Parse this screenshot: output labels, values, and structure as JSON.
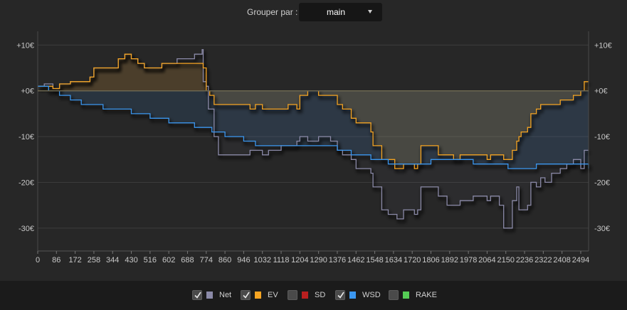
{
  "toolbar": {
    "group_label": "Grouper par :",
    "group_value": "main"
  },
  "legend": [
    {
      "label": "Net",
      "color": "#8b8aa8",
      "checked": true
    },
    {
      "label": "EV",
      "color": "#f5a422",
      "checked": true
    },
    {
      "label": "SD",
      "color": "#b81f1f",
      "checked": false
    },
    {
      "label": "WSD",
      "color": "#3b97f0",
      "checked": true
    },
    {
      "label": "RAKE",
      "color": "#55cc55",
      "checked": false
    }
  ],
  "chart_data": {
    "type": "line",
    "title": "",
    "xlabel": "",
    "ylabel": "",
    "xlim": [
      0,
      2530
    ],
    "ylim": [
      -35,
      13
    ],
    "x_ticks": [
      0,
      86,
      172,
      258,
      344,
      430,
      516,
      602,
      688,
      774,
      860,
      946,
      1032,
      1118,
      1204,
      1290,
      1376,
      1462,
      1548,
      1634,
      1720,
      1806,
      1892,
      1978,
      2064,
      2150,
      2236,
      2322,
      2408,
      2494
    ],
    "y_ticks": [
      10,
      0,
      -10,
      -20,
      -30
    ],
    "y_tick_labels": [
      "+10€",
      "+0€",
      "-10€",
      "-20€",
      "-30€"
    ],
    "grid": true,
    "series": [
      {
        "name": "Net",
        "color": "#8b8aa8",
        "points": [
          [
            0,
            1
          ],
          [
            30,
            1.5
          ],
          [
            70,
            0.5
          ],
          [
            100,
            1.5
          ],
          [
            150,
            2
          ],
          [
            210,
            2
          ],
          [
            240,
            3
          ],
          [
            258,
            5
          ],
          [
            300,
            5
          ],
          [
            344,
            5
          ],
          [
            370,
            7
          ],
          [
            400,
            8
          ],
          [
            430,
            7
          ],
          [
            460,
            6
          ],
          [
            490,
            5
          ],
          [
            530,
            5
          ],
          [
            570,
            6
          ],
          [
            602,
            6
          ],
          [
            640,
            7
          ],
          [
            688,
            7
          ],
          [
            720,
            8
          ],
          [
            745,
            8
          ],
          [
            755,
            9
          ],
          [
            760,
            2
          ],
          [
            774,
            1
          ],
          [
            784,
            -4
          ],
          [
            790,
            -4
          ],
          [
            810,
            -10
          ],
          [
            830,
            -14
          ],
          [
            860,
            -14
          ],
          [
            900,
            -14
          ],
          [
            946,
            -14
          ],
          [
            975,
            -13
          ],
          [
            1000,
            -13
          ],
          [
            1032,
            -14
          ],
          [
            1060,
            -13
          ],
          [
            1100,
            -13
          ],
          [
            1118,
            -12
          ],
          [
            1150,
            -12
          ],
          [
            1190,
            -11
          ],
          [
            1204,
            -10
          ],
          [
            1240,
            -11
          ],
          [
            1290,
            -10
          ],
          [
            1330,
            -10
          ],
          [
            1345,
            -11
          ],
          [
            1376,
            -13
          ],
          [
            1400,
            -14
          ],
          [
            1440,
            -15
          ],
          [
            1462,
            -17
          ],
          [
            1490,
            -17
          ],
          [
            1530,
            -18
          ],
          [
            1540,
            -21
          ],
          [
            1560,
            -21
          ],
          [
            1580,
            -26
          ],
          [
            1610,
            -27
          ],
          [
            1640,
            -27
          ],
          [
            1650,
            -28
          ],
          [
            1665,
            -28
          ],
          [
            1680,
            -26
          ],
          [
            1710,
            -26
          ],
          [
            1730,
            -27
          ],
          [
            1745,
            -26
          ],
          [
            1760,
            -21
          ],
          [
            1790,
            -21
          ],
          [
            1806,
            -21
          ],
          [
            1840,
            -23
          ],
          [
            1880,
            -25
          ],
          [
            1910,
            -25
          ],
          [
            1940,
            -24
          ],
          [
            1970,
            -24
          ],
          [
            2000,
            -23
          ],
          [
            2040,
            -23
          ],
          [
            2064,
            -24
          ],
          [
            2080,
            -23
          ],
          [
            2100,
            -23
          ],
          [
            2120,
            -25
          ],
          [
            2140,
            -30
          ],
          [
            2160,
            -30
          ],
          [
            2180,
            -24
          ],
          [
            2200,
            -21
          ],
          [
            2210,
            -26
          ],
          [
            2220,
            -26
          ],
          [
            2236,
            -26
          ],
          [
            2250,
            -25
          ],
          [
            2265,
            -20
          ],
          [
            2290,
            -21
          ],
          [
            2310,
            -19
          ],
          [
            2330,
            -20
          ],
          [
            2360,
            -18
          ],
          [
            2400,
            -17
          ],
          [
            2430,
            -16
          ],
          [
            2460,
            -15
          ],
          [
            2494,
            -17
          ],
          [
            2510,
            -13
          ],
          [
            2530,
            -13
          ]
        ]
      },
      {
        "name": "EV",
        "color": "#f5a422",
        "points": [
          [
            0,
            1
          ],
          [
            30,
            1
          ],
          [
            70,
            0.5
          ],
          [
            100,
            1.5
          ],
          [
            150,
            2
          ],
          [
            210,
            2
          ],
          [
            240,
            3
          ],
          [
            258,
            5
          ],
          [
            300,
            5
          ],
          [
            344,
            5
          ],
          [
            370,
            7
          ],
          [
            400,
            8
          ],
          [
            430,
            7
          ],
          [
            460,
            6
          ],
          [
            490,
            5
          ],
          [
            530,
            5
          ],
          [
            570,
            6
          ],
          [
            602,
            6
          ],
          [
            640,
            6
          ],
          [
            688,
            6
          ],
          [
            720,
            6
          ],
          [
            745,
            6
          ],
          [
            760,
            5
          ],
          [
            774,
            0
          ],
          [
            790,
            -1
          ],
          [
            810,
            -3
          ],
          [
            830,
            -3
          ],
          [
            860,
            -3
          ],
          [
            900,
            -3
          ],
          [
            946,
            -3
          ],
          [
            975,
            -4
          ],
          [
            1000,
            -3
          ],
          [
            1032,
            -4
          ],
          [
            1060,
            -4
          ],
          [
            1100,
            -4
          ],
          [
            1118,
            -4
          ],
          [
            1150,
            -3
          ],
          [
            1190,
            -4
          ],
          [
            1204,
            -1
          ],
          [
            1220,
            -1
          ],
          [
            1240,
            0
          ],
          [
            1290,
            -1
          ],
          [
            1330,
            -1
          ],
          [
            1345,
            -1
          ],
          [
            1376,
            -3
          ],
          [
            1400,
            -4
          ],
          [
            1440,
            -6
          ],
          [
            1462,
            -7
          ],
          [
            1490,
            -7
          ],
          [
            1530,
            -9
          ],
          [
            1540,
            -12
          ],
          [
            1560,
            -12
          ],
          [
            1580,
            -15
          ],
          [
            1610,
            -15
          ],
          [
            1640,
            -17
          ],
          [
            1650,
            -17
          ],
          [
            1665,
            -17
          ],
          [
            1680,
            -16
          ],
          [
            1710,
            -16
          ],
          [
            1730,
            -17
          ],
          [
            1745,
            -16
          ],
          [
            1760,
            -12
          ],
          [
            1790,
            -12
          ],
          [
            1806,
            -12
          ],
          [
            1840,
            -14
          ],
          [
            1880,
            -14
          ],
          [
            1910,
            -15
          ],
          [
            1940,
            -14
          ],
          [
            1970,
            -14
          ],
          [
            2000,
            -14
          ],
          [
            2040,
            -14
          ],
          [
            2064,
            -15
          ],
          [
            2080,
            -14
          ],
          [
            2100,
            -14
          ],
          [
            2120,
            -14
          ],
          [
            2140,
            -15
          ],
          [
            2160,
            -15
          ],
          [
            2180,
            -13
          ],
          [
            2200,
            -11
          ],
          [
            2210,
            -10
          ],
          [
            2220,
            -9
          ],
          [
            2236,
            -9
          ],
          [
            2250,
            -8
          ],
          [
            2265,
            -5
          ],
          [
            2290,
            -4
          ],
          [
            2310,
            -3
          ],
          [
            2330,
            -3
          ],
          [
            2360,
            -3
          ],
          [
            2400,
            -2
          ],
          [
            2430,
            -2
          ],
          [
            2460,
            -1
          ],
          [
            2494,
            0
          ],
          [
            2510,
            2
          ],
          [
            2530,
            2
          ]
        ]
      },
      {
        "name": "WSD",
        "color": "#3b97f0",
        "points": [
          [
            0,
            1
          ],
          [
            50,
            0
          ],
          [
            100,
            -1
          ],
          [
            150,
            -2
          ],
          [
            200,
            -3
          ],
          [
            258,
            -3
          ],
          [
            300,
            -4
          ],
          [
            344,
            -4
          ],
          [
            400,
            -4
          ],
          [
            430,
            -5
          ],
          [
            460,
            -5
          ],
          [
            490,
            -5
          ],
          [
            516,
            -6
          ],
          [
            560,
            -6
          ],
          [
            602,
            -7
          ],
          [
            640,
            -7
          ],
          [
            688,
            -7
          ],
          [
            720,
            -8
          ],
          [
            760,
            -8
          ],
          [
            774,
            -8
          ],
          [
            800,
            -9
          ],
          [
            830,
            -9
          ],
          [
            860,
            -10
          ],
          [
            900,
            -10
          ],
          [
            946,
            -11
          ],
          [
            975,
            -11
          ],
          [
            1000,
            -12
          ],
          [
            1032,
            -12
          ],
          [
            1060,
            -12
          ],
          [
            1100,
            -12
          ],
          [
            1118,
            -12
          ],
          [
            1150,
            -12
          ],
          [
            1190,
            -12
          ],
          [
            1204,
            -12
          ],
          [
            1240,
            -12
          ],
          [
            1290,
            -12
          ],
          [
            1330,
            -12
          ],
          [
            1345,
            -12
          ],
          [
            1376,
            -13
          ],
          [
            1400,
            -13
          ],
          [
            1440,
            -14
          ],
          [
            1462,
            -14
          ],
          [
            1490,
            -14
          ],
          [
            1530,
            -15
          ],
          [
            1560,
            -15
          ],
          [
            1580,
            -15
          ],
          [
            1610,
            -16
          ],
          [
            1640,
            -16
          ],
          [
            1680,
            -16
          ],
          [
            1710,
            -16
          ],
          [
            1730,
            -16
          ],
          [
            1760,
            -16
          ],
          [
            1806,
            -15
          ],
          [
            1840,
            -15
          ],
          [
            1880,
            -15
          ],
          [
            1910,
            -15
          ],
          [
            1940,
            -15
          ],
          [
            1970,
            -15
          ],
          [
            2000,
            -16
          ],
          [
            2040,
            -16
          ],
          [
            2064,
            -16
          ],
          [
            2100,
            -16
          ],
          [
            2140,
            -16
          ],
          [
            2160,
            -17
          ],
          [
            2200,
            -17
          ],
          [
            2236,
            -17
          ],
          [
            2265,
            -17
          ],
          [
            2290,
            -16
          ],
          [
            2330,
            -16
          ],
          [
            2360,
            -16
          ],
          [
            2400,
            -16
          ],
          [
            2430,
            -16
          ],
          [
            2460,
            -16
          ],
          [
            2494,
            -16
          ],
          [
            2530,
            -17
          ]
        ]
      }
    ]
  }
}
